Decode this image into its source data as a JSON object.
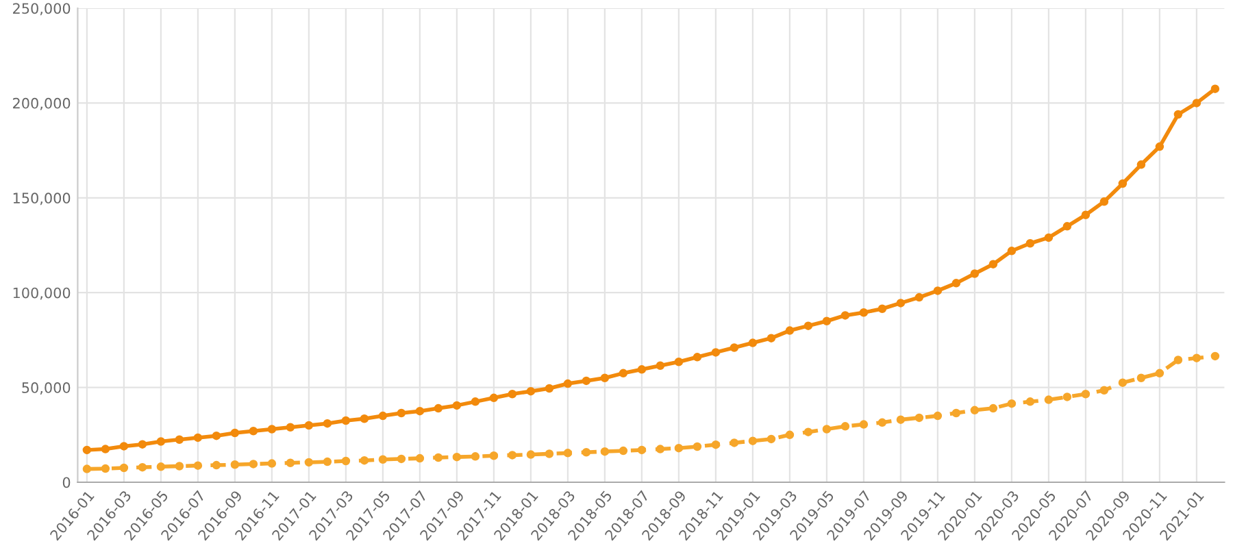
{
  "chart_data": {
    "type": "line",
    "categories": [
      "2016-01",
      null,
      "2016-03",
      null,
      "2016-05",
      null,
      "2016-07",
      null,
      "2016-09",
      null,
      "2016-11",
      null,
      "2017-01",
      null,
      "2017-03",
      null,
      "2017-05",
      null,
      "2017-07",
      null,
      "2017-09",
      null,
      "2017-11",
      null,
      "2018-01",
      null,
      "2018-03",
      null,
      "2018-05",
      null,
      "2018-07",
      null,
      "2018-09",
      null,
      "2018-11",
      null,
      "2019-01",
      null,
      "2019-03",
      null,
      "2019-05",
      null,
      "2019-07",
      null,
      "2019-09",
      null,
      "2019-11",
      null,
      "2020-01",
      null,
      "2020-03",
      null,
      "2020-05",
      null,
      "2020-07",
      null,
      "2020-09",
      null,
      "2020-11",
      null,
      "2021-01",
      null
    ],
    "series": [
      {
        "color": "#f28a0c",
        "line_style": "solid",
        "values": [
          17000,
          17500,
          19000,
          20000,
          21500,
          22500,
          23500,
          24500,
          26000,
          27000,
          28000,
          29000,
          30000,
          31000,
          32500,
          33500,
          35000,
          36500,
          37500,
          39000,
          40500,
          42500,
          44500,
          46500,
          48000,
          49500,
          52000,
          53500,
          55000,
          57500,
          59500,
          61500,
          63500,
          66000,
          68500,
          71000,
          73500,
          76000,
          80000,
          82500,
          85000,
          88000,
          89500,
          91500,
          94500,
          97500,
          101000,
          105000,
          110000,
          115000,
          122000,
          126000,
          129000,
          135000,
          141000,
          148000,
          157500,
          167500,
          177000,
          194000,
          200000,
          207500
        ]
      },
      {
        "color": "#f6a62a",
        "line_style": "dashed",
        "values": [
          7000,
          7200,
          7600,
          7900,
          8200,
          8500,
          8800,
          9000,
          9300,
          9600,
          9900,
          10200,
          10500,
          10800,
          11200,
          11500,
          12000,
          12300,
          12600,
          13000,
          13300,
          13600,
          14000,
          14300,
          14600,
          15000,
          15400,
          15800,
          16200,
          16600,
          17000,
          17500,
          18000,
          18800,
          19800,
          20800,
          21800,
          22800,
          25000,
          26500,
          28000,
          29500,
          30500,
          31500,
          33000,
          34000,
          35000,
          36500,
          38000,
          39000,
          41500,
          42500,
          43500,
          45000,
          46500,
          48500,
          52500,
          55000,
          57500,
          64500,
          65500,
          66500
        ]
      }
    ],
    "ylim": [
      0,
      250000
    ],
    "yticks": [
      {
        "value": 0,
        "label": "0"
      },
      {
        "value": 50000,
        "label": "50,000"
      },
      {
        "value": 100000,
        "label": "100,000"
      },
      {
        "value": 150000,
        "label": "150,000"
      },
      {
        "value": 200000,
        "label": "200,000"
      },
      {
        "value": 250000,
        "label": "250,000"
      }
    ],
    "grid": true,
    "marker": "circle"
  }
}
